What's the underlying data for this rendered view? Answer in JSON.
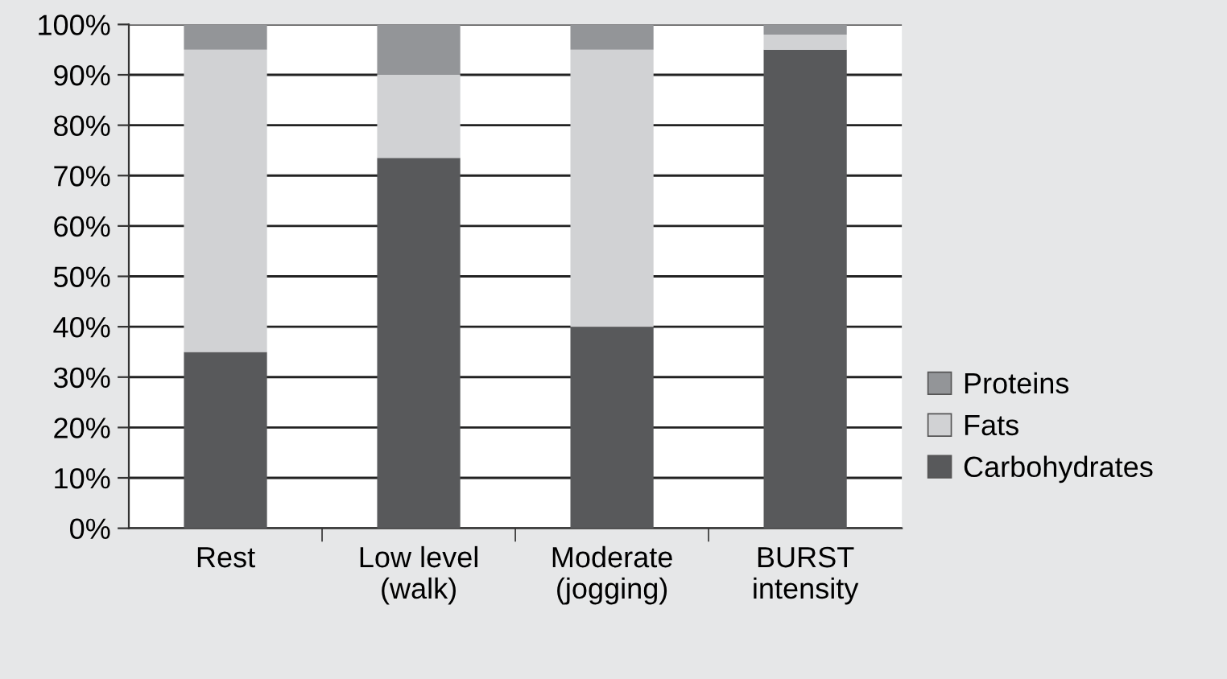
{
  "chart_data": {
    "type": "bar",
    "stacked": true,
    "categories": [
      "Rest",
      "Low level\n(walk)",
      "Moderate\n(jogging)",
      "BURST\nintensity"
    ],
    "series": [
      {
        "name": "Carbohydrates",
        "color": "#58595b",
        "values": [
          35,
          73.5,
          40,
          95
        ]
      },
      {
        "name": "Fats",
        "color": "#d1d2d4",
        "values": [
          60,
          16.5,
          55,
          3
        ]
      },
      {
        "name": "Proteins",
        "color": "#939598",
        "values": [
          5,
          10,
          5,
          2
        ]
      }
    ],
    "ylim": [
      0,
      100
    ],
    "yticks": [
      {
        "value": 0,
        "label": "0%"
      },
      {
        "value": 10,
        "label": "10%"
      },
      {
        "value": 20,
        "label": "20%"
      },
      {
        "value": 30,
        "label": "30%"
      },
      {
        "value": 40,
        "label": "40%"
      },
      {
        "value": 50,
        "label": "50%"
      },
      {
        "value": 60,
        "label": "60%"
      },
      {
        "value": 70,
        "label": "70%"
      },
      {
        "value": 80,
        "label": "80%"
      },
      {
        "value": 90,
        "label": "90%"
      },
      {
        "value": 100,
        "label": "100%"
      }
    ],
    "grid": "y",
    "legend": "right"
  }
}
